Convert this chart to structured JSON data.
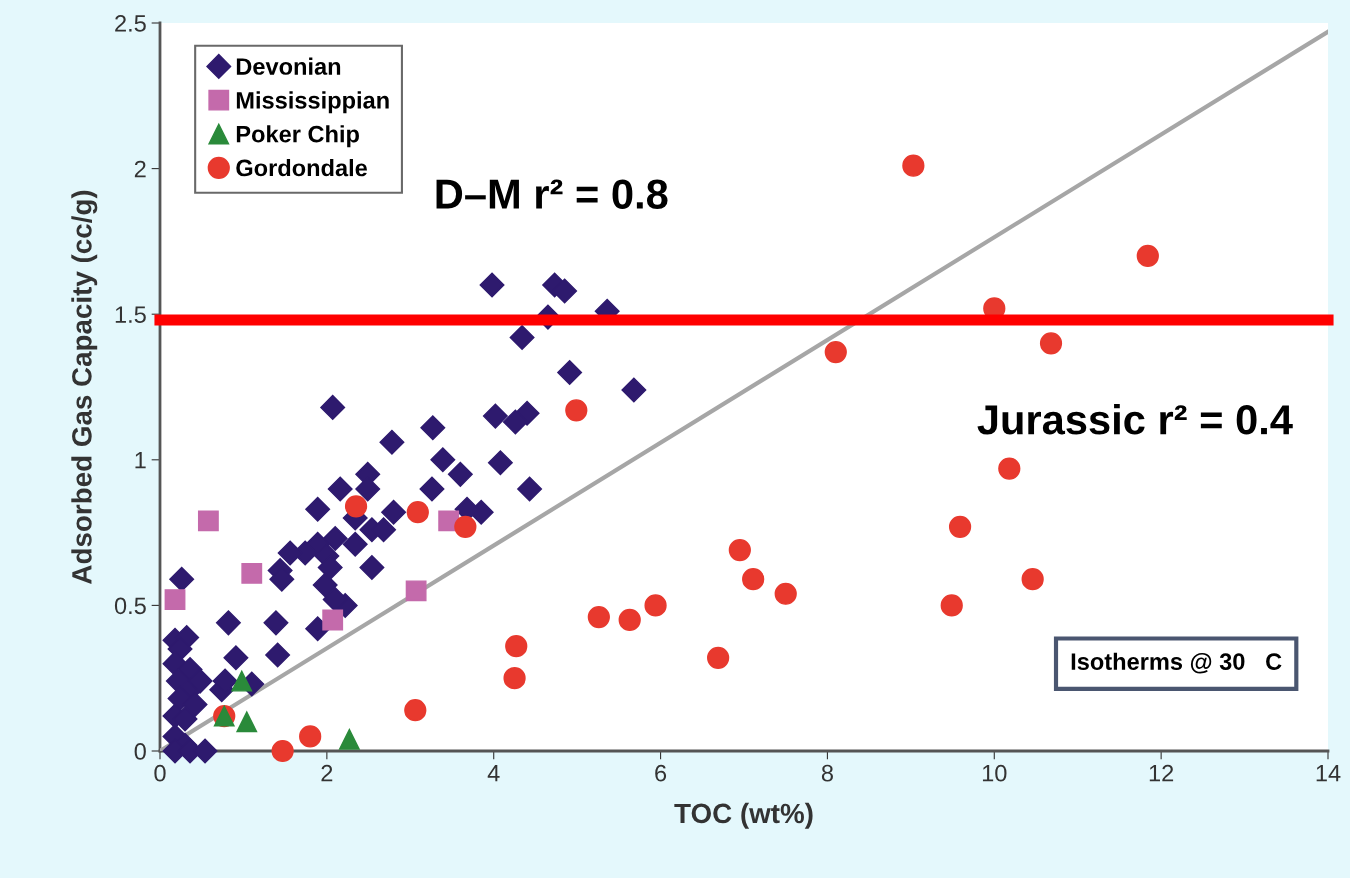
{
  "chart_data": {
    "type": "scatter",
    "xlabel": "TOC (wt%)",
    "ylabel": "Adsorbed Gas Capacity (cc/g)",
    "xlim": [
      0,
      14
    ],
    "ylim": [
      0,
      2.5
    ],
    "xticks": [
      0,
      2,
      4,
      6,
      8,
      10,
      12,
      14
    ],
    "yticks": [
      0,
      0.5,
      1,
      1.5,
      2,
      2.5
    ],
    "grid": false,
    "legend": "top left",
    "series": [
      {
        "name": "Devonian",
        "color": "#2e1a6e",
        "marker": "diamond",
        "x": [
          3.98,
          4.73,
          4.85,
          5.36,
          4.65,
          4.34,
          4.91,
          5.68,
          4.02,
          4.4,
          4.26,
          2.07,
          3.27,
          2.78,
          3.39,
          4.08,
          2.49,
          3.6,
          3.26,
          2.16,
          2.49,
          4.43,
          2.8,
          1.89,
          3.85,
          3.68,
          2.34,
          2.54,
          2.68,
          2.34,
          2.1,
          1.89,
          1.74,
          1.56,
          2.0,
          2.04,
          1.98,
          2.54,
          1.44,
          1.46,
          2.22,
          2.1,
          1.89,
          0.26,
          0.82,
          1.39,
          0.91,
          1.41,
          1.1,
          0.74,
          0.78,
          0.18,
          0.32,
          0.24,
          0.18,
          0.36,
          0.22,
          0.36,
          0.24,
          0.18,
          0.3,
          0.18,
          0.3,
          0.18,
          0.36,
          0.54,
          0.48,
          0.42
        ],
        "values": [
          1.6,
          1.6,
          1.58,
          1.51,
          1.49,
          1.42,
          1.3,
          1.24,
          1.15,
          1.16,
          1.13,
          1.18,
          1.11,
          1.06,
          1.0,
          0.99,
          0.95,
          0.95,
          0.9,
          0.9,
          0.9,
          0.9,
          0.82,
          0.83,
          0.82,
          0.83,
          0.8,
          0.76,
          0.76,
          0.71,
          0.73,
          0.71,
          0.68,
          0.68,
          0.67,
          0.63,
          0.57,
          0.63,
          0.62,
          0.59,
          0.5,
          0.52,
          0.42,
          0.59,
          0.44,
          0.44,
          0.32,
          0.33,
          0.23,
          0.21,
          0.24,
          0.38,
          0.39,
          0.35,
          0.3,
          0.28,
          0.24,
          0.21,
          0.18,
          0.12,
          0.11,
          0.05,
          0.02,
          0,
          0,
          0,
          0.24,
          0.16
        ]
      },
      {
        "name": "Mississippian",
        "color": "#c46aab",
        "marker": "square",
        "x": [
          0.18,
          0.58,
          1.1,
          2.07,
          3.07,
          3.46
        ],
        "values": [
          0.52,
          0.79,
          0.61,
          0.45,
          0.55,
          0.79
        ]
      },
      {
        "name": "Poker Chip",
        "color": "#2a8a3a",
        "marker": "triangle",
        "x": [
          0.98,
          1.04,
          2.27,
          0.77
        ],
        "values": [
          0.24,
          0.1,
          0.04,
          0.12
        ]
      },
      {
        "name": "Gordondale",
        "color": "#e8392e",
        "marker": "circle",
        "x": [
          9.03,
          11.84,
          10.0,
          10.68,
          8.1,
          4.99,
          10.18,
          2.35,
          3.09,
          3.66,
          9.59,
          6.95,
          7.11,
          10.46,
          7.5,
          5.94,
          9.49,
          5.26,
          5.63,
          4.27,
          4.25,
          6.69,
          3.06,
          0.77,
          1.8,
          1.47
        ],
        "values": [
          2.01,
          1.7,
          1.52,
          1.4,
          1.37,
          1.17,
          0.97,
          0.84,
          0.82,
          0.77,
          0.77,
          0.69,
          0.59,
          0.59,
          0.54,
          0.5,
          0.5,
          0.46,
          0.45,
          0.36,
          0.25,
          0.32,
          0.14,
          0.12,
          0.05,
          0.0
        ]
      },
      {
        "type": "line",
        "color": "#a6a6a6",
        "marker": "none",
        "x": [
          0,
          14
        ],
        "values": [
          0,
          2.47
        ]
      }
    ],
    "ref_lines": [
      {
        "axis": "y",
        "value": 1.48,
        "color": "#ff0000"
      }
    ],
    "annotations": [
      "D–M r² = 0.8",
      "Jurassic r² = 0.4",
      "Isotherms @ 30   C"
    ]
  }
}
